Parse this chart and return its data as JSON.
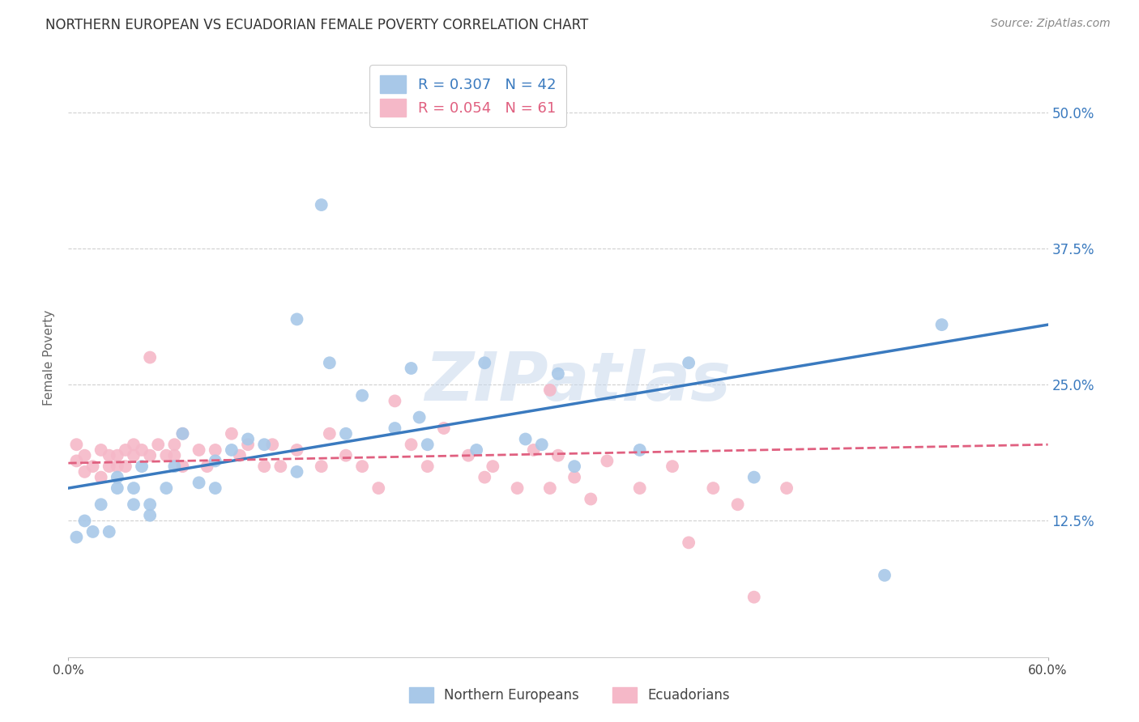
{
  "title": "NORTHERN EUROPEAN VS ECUADORIAN FEMALE POVERTY CORRELATION CHART",
  "source": "Source: ZipAtlas.com",
  "ylabel": "Female Poverty",
  "ytick_labels": [
    "12.5%",
    "25.0%",
    "37.5%",
    "50.0%"
  ],
  "ytick_values": [
    0.125,
    0.25,
    0.375,
    0.5
  ],
  "xlim": [
    0.0,
    0.6
  ],
  "ylim": [
    0.0,
    0.55
  ],
  "blue_color": "#a8c8e8",
  "blue_line_color": "#3a7abf",
  "pink_color": "#f5b8c8",
  "pink_line_color": "#e06080",
  "blue_R": 0.307,
  "blue_N": 42,
  "pink_R": 0.054,
  "pink_N": 61,
  "watermark": "ZIPatlas",
  "legend_label_blue": "Northern Europeans",
  "legend_label_pink": "Ecuadorians",
  "blue_x": [
    0.005,
    0.01,
    0.015,
    0.02,
    0.025,
    0.03,
    0.03,
    0.04,
    0.04,
    0.045,
    0.05,
    0.05,
    0.06,
    0.065,
    0.07,
    0.08,
    0.09,
    0.09,
    0.1,
    0.11,
    0.12,
    0.14,
    0.14,
    0.155,
    0.16,
    0.17,
    0.18,
    0.2,
    0.21,
    0.215,
    0.22,
    0.25,
    0.255,
    0.28,
    0.29,
    0.3,
    0.31,
    0.35,
    0.38,
    0.42,
    0.5,
    0.535
  ],
  "blue_y": [
    0.11,
    0.125,
    0.115,
    0.14,
    0.115,
    0.165,
    0.155,
    0.14,
    0.155,
    0.175,
    0.13,
    0.14,
    0.155,
    0.175,
    0.205,
    0.16,
    0.18,
    0.155,
    0.19,
    0.2,
    0.195,
    0.17,
    0.31,
    0.415,
    0.27,
    0.205,
    0.24,
    0.21,
    0.265,
    0.22,
    0.195,
    0.19,
    0.27,
    0.2,
    0.195,
    0.26,
    0.175,
    0.19,
    0.27,
    0.165,
    0.075,
    0.305
  ],
  "pink_x": [
    0.005,
    0.005,
    0.01,
    0.01,
    0.015,
    0.02,
    0.02,
    0.025,
    0.025,
    0.03,
    0.03,
    0.035,
    0.035,
    0.04,
    0.04,
    0.045,
    0.05,
    0.05,
    0.055,
    0.06,
    0.065,
    0.065,
    0.07,
    0.07,
    0.08,
    0.085,
    0.09,
    0.1,
    0.105,
    0.11,
    0.12,
    0.125,
    0.13,
    0.14,
    0.155,
    0.16,
    0.17,
    0.18,
    0.19,
    0.2,
    0.21,
    0.22,
    0.23,
    0.245,
    0.255,
    0.26,
    0.275,
    0.285,
    0.295,
    0.3,
    0.31,
    0.32,
    0.33,
    0.35,
    0.37,
    0.38,
    0.395,
    0.41,
    0.42,
    0.44,
    0.295
  ],
  "pink_y": [
    0.18,
    0.195,
    0.17,
    0.185,
    0.175,
    0.19,
    0.165,
    0.175,
    0.185,
    0.175,
    0.185,
    0.19,
    0.175,
    0.185,
    0.195,
    0.19,
    0.275,
    0.185,
    0.195,
    0.185,
    0.195,
    0.185,
    0.205,
    0.175,
    0.19,
    0.175,
    0.19,
    0.205,
    0.185,
    0.195,
    0.175,
    0.195,
    0.175,
    0.19,
    0.175,
    0.205,
    0.185,
    0.175,
    0.155,
    0.235,
    0.195,
    0.175,
    0.21,
    0.185,
    0.165,
    0.175,
    0.155,
    0.19,
    0.155,
    0.185,
    0.165,
    0.145,
    0.18,
    0.155,
    0.175,
    0.105,
    0.155,
    0.14,
    0.055,
    0.155,
    0.245
  ],
  "blue_line_x0": 0.0,
  "blue_line_y0": 0.155,
  "blue_line_x1": 0.6,
  "blue_line_y1": 0.305,
  "pink_line_x0": 0.0,
  "pink_line_y0": 0.178,
  "pink_line_x1": 0.6,
  "pink_line_y1": 0.195,
  "background_color": "#ffffff",
  "grid_color": "#d0d0d0",
  "title_fontsize": 12,
  "axis_label_fontsize": 11,
  "tick_fontsize": 11
}
